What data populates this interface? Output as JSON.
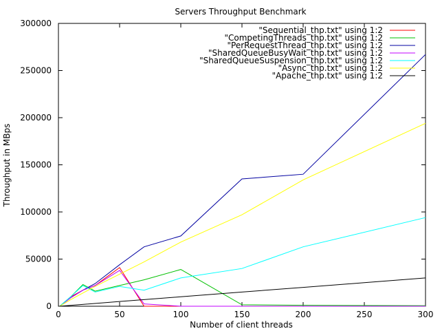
{
  "chart_data": {
    "type": "line",
    "title": "Servers Throughput Benchmark",
    "xlabel": "Number of client threads",
    "ylabel": "Throughput in MBps",
    "xlim": [
      0,
      300
    ],
    "ylim": [
      0,
      300000
    ],
    "xticks": [
      0,
      50,
      100,
      150,
      200,
      250,
      300
    ],
    "yticks": [
      0,
      50000,
      100000,
      150000,
      200000,
      250000,
      300000
    ],
    "grid": false,
    "legend_position": "top-right",
    "series": [
      {
        "name": "\"Sequential_thp.txt\" using 1:2",
        "color": "#ff0000",
        "points": [
          [
            1,
            0
          ],
          [
            10,
            10000
          ],
          [
            20,
            17000
          ],
          [
            30,
            22000
          ],
          [
            50,
            41000
          ],
          [
            70,
            0
          ],
          [
            100,
            0
          ],
          [
            150,
            0
          ],
          [
            200,
            0
          ],
          [
            300,
            0
          ]
        ]
      },
      {
        "name": "\"CompetingThreads_thp.txt\" using 1:2",
        "color": "#00c000",
        "points": [
          [
            1,
            0
          ],
          [
            10,
            10000
          ],
          [
            20,
            23000
          ],
          [
            30,
            16000
          ],
          [
            50,
            22000
          ],
          [
            70,
            28000
          ],
          [
            100,
            39000
          ],
          [
            150,
            1500
          ],
          [
            200,
            1000
          ],
          [
            300,
            500
          ]
        ]
      },
      {
        "name": "\"PerRequestThread_thp.txt\" using 1:2",
        "color": "#0000a0",
        "points": [
          [
            1,
            0
          ],
          [
            10,
            9000
          ],
          [
            20,
            17000
          ],
          [
            30,
            24000
          ],
          [
            50,
            44000
          ],
          [
            70,
            63000
          ],
          [
            100,
            74500
          ],
          [
            150,
            135000
          ],
          [
            200,
            140000
          ],
          [
            300,
            267000
          ]
        ]
      },
      {
        "name": "\"SharedQueueBusyWait_thp.txt\" using 1:2",
        "color": "#c000ff",
        "points": [
          [
            1,
            0
          ],
          [
            10,
            9000
          ],
          [
            20,
            17000
          ],
          [
            30,
            22000
          ],
          [
            50,
            38000
          ],
          [
            70,
            2500
          ],
          [
            100,
            0
          ],
          [
            150,
            0
          ],
          [
            200,
            0
          ],
          [
            300,
            0
          ]
        ]
      },
      {
        "name": "\"SharedQueueSuspension_thp.txt\" using 1:2",
        "color": "#00ffff",
        "points": [
          [
            1,
            0
          ],
          [
            10,
            10000
          ],
          [
            20,
            22000
          ],
          [
            30,
            15000
          ],
          [
            50,
            21000
          ],
          [
            70,
            17000
          ],
          [
            100,
            30000
          ],
          [
            150,
            40000
          ],
          [
            200,
            63000
          ],
          [
            300,
            94000
          ]
        ]
      },
      {
        "name": "\"Async_thp.txt\" using 1:2",
        "color": "#ffff00",
        "points": [
          [
            1,
            0
          ],
          [
            10,
            7000
          ],
          [
            20,
            14000
          ],
          [
            30,
            21000
          ],
          [
            50,
            34000
          ],
          [
            70,
            47000
          ],
          [
            100,
            68000
          ],
          [
            150,
            97000
          ],
          [
            200,
            134000
          ],
          [
            300,
            194000
          ]
        ]
      },
      {
        "name": "\"Apache_thp.txt\" using 1:2",
        "color": "#000000",
        "points": [
          [
            1,
            0
          ],
          [
            50,
            5000
          ],
          [
            100,
            10000
          ],
          [
            150,
            15000
          ],
          [
            200,
            20000
          ],
          [
            250,
            25000
          ],
          [
            300,
            30000
          ]
        ]
      }
    ]
  }
}
